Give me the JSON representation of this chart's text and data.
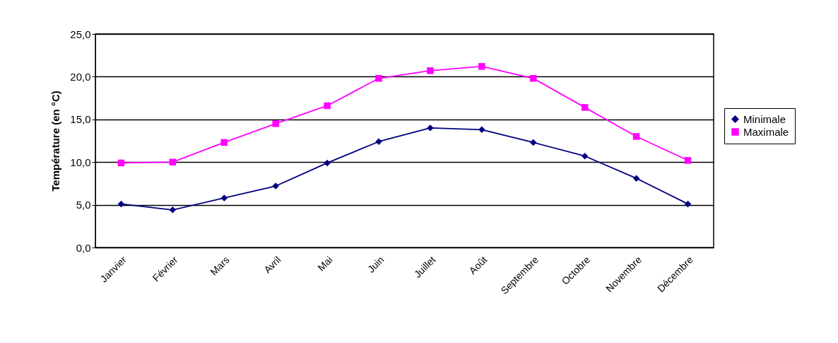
{
  "chart_data": {
    "type": "line",
    "ylabel": "Température (en °C)",
    "categories": [
      "Janvier",
      "Février",
      "Mars",
      "Avril",
      "Mai",
      "Juin",
      "Juillet",
      "Août",
      "Septembre",
      "Octobre",
      "Novembre",
      "Décembre"
    ],
    "series": [
      {
        "name": "Minimale",
        "color": "#000080",
        "marker": "diamond",
        "values": [
          5.1,
          4.4,
          5.8,
          7.2,
          9.9,
          12.4,
          14.0,
          13.8,
          12.3,
          10.7,
          8.1,
          5.1
        ]
      },
      {
        "name": "Maximale",
        "color": "#ff00ff",
        "marker": "square",
        "values": [
          9.9,
          10.0,
          12.3,
          14.5,
          16.6,
          19.8,
          20.7,
          21.2,
          19.8,
          16.4,
          13.0,
          10.2
        ]
      }
    ],
    "ylim": [
      0,
      25
    ],
    "yticks": [
      {
        "value": 0,
        "label": "0,0"
      },
      {
        "value": 5,
        "label": "5,0"
      },
      {
        "value": 10,
        "label": "10,0"
      },
      {
        "value": 15,
        "label": "15,0"
      },
      {
        "value": 20,
        "label": "20,0"
      },
      {
        "value": 25,
        "label": "25,0"
      }
    ],
    "grid": "y",
    "legend": "right",
    "line_style": "solid"
  }
}
